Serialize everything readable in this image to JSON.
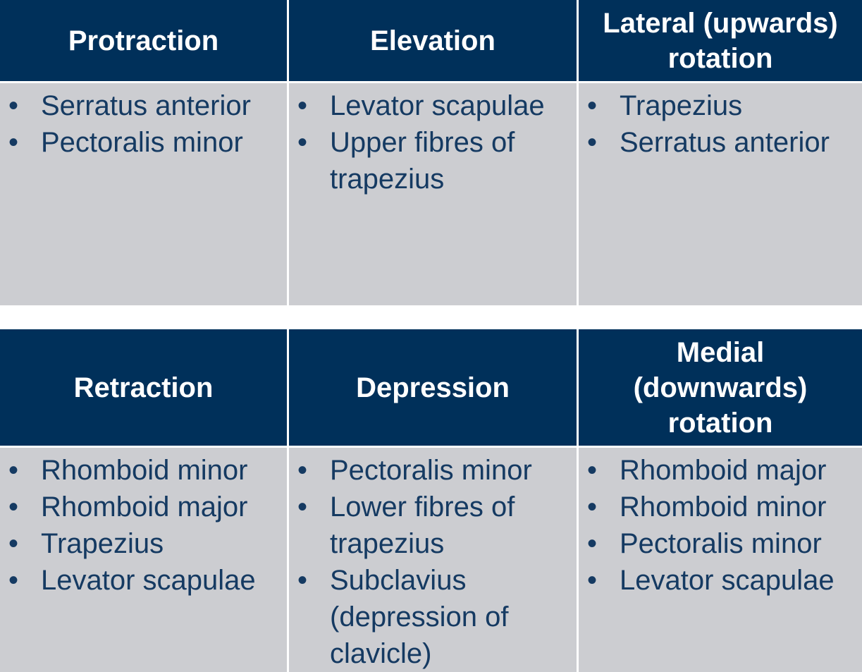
{
  "tables": [
    {
      "headers": [
        "Protraction",
        "Elevation",
        "Lateral (upwards) rotation"
      ],
      "columns": [
        [
          "Serratus anterior",
          "Pectoralis minor"
        ],
        [
          "Levator scapulae",
          "Upper fibres of trapezius"
        ],
        [
          "Trapezius",
          "Serratus anterior"
        ]
      ]
    },
    {
      "headers": [
        "Retraction",
        "Depression",
        "Medial (downwards) rotation"
      ],
      "columns": [
        [
          "Rhomboid minor",
          "Rhomboid major",
          "Trapezius",
          "Levator scapulae"
        ],
        [
          "Pectoralis minor",
          "Lower fibres of trapezius",
          "Subclavius (depression of clavicle)"
        ],
        [
          "Rhomboid major",
          "Rhomboid minor",
          "Pectoralis minor",
          "Levator scapulae"
        ]
      ]
    }
  ]
}
